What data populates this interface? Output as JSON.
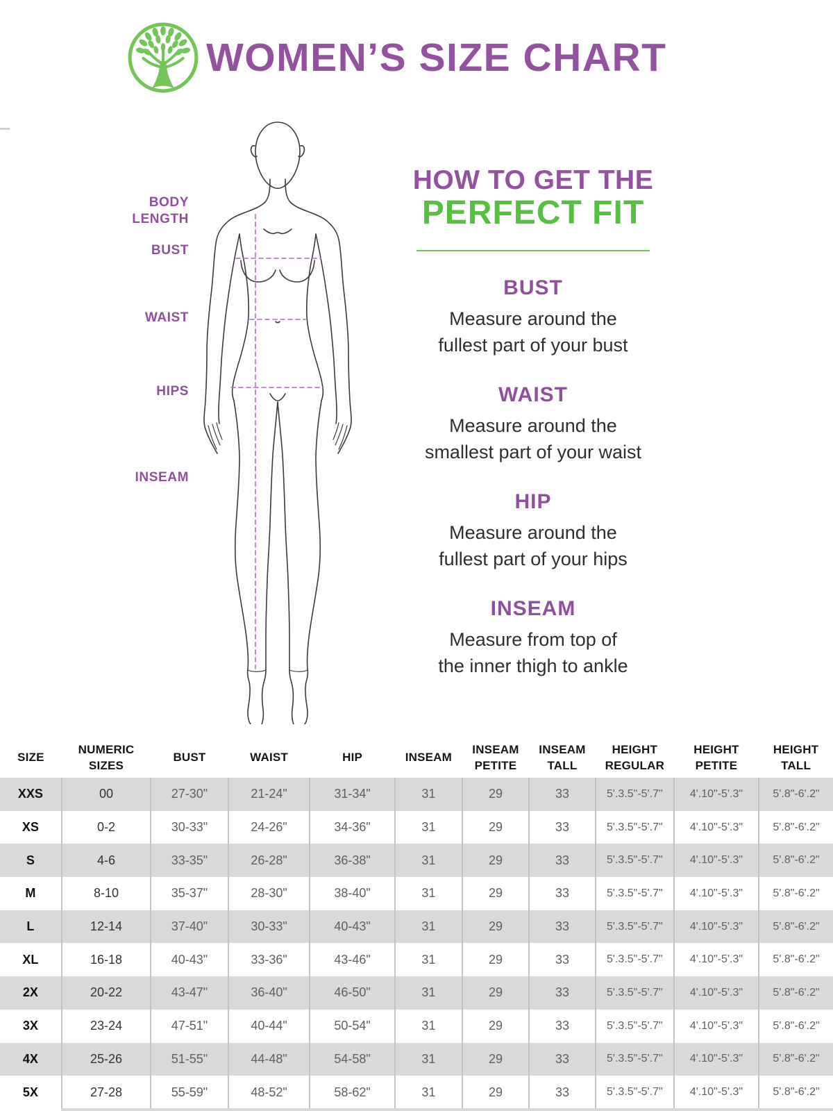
{
  "colors": {
    "purple": "#94519f",
    "green": "#56c13e",
    "logo_green": "#72c556",
    "dash_purple": "#b77fc9",
    "table_row_gray": "#d9d9d9"
  },
  "header": {
    "title": "WOMEN’S SIZE CHART",
    "logo_icon": "tree-in-circle"
  },
  "figure": {
    "labels": {
      "body_length": "BODY LENGTH",
      "bust": "BUST",
      "waist": "WAIST",
      "hips": "HIPS",
      "inseam": "INSEAM"
    }
  },
  "guide": {
    "title_line1": "HOW TO GET THE",
    "title_line2": "PERFECT FIT",
    "sections": [
      {
        "heading": "BUST",
        "lines": [
          "Measure around the",
          "fullest part of your bust"
        ]
      },
      {
        "heading": "WAIST",
        "lines": [
          "Measure around the",
          "smallest part of your waist"
        ]
      },
      {
        "heading": "HIP",
        "lines": [
          "Measure around the",
          "fullest part of your hips"
        ]
      },
      {
        "heading": "INSEAM",
        "lines": [
          "Measure from top of",
          "the inner thigh to ankle"
        ]
      }
    ]
  },
  "table": {
    "headers": [
      "SIZE",
      "NUMERIC SIZES",
      "BUST",
      "WAIST",
      "HIP",
      "INSEAM",
      "INSEAM PETITE",
      "INSEAM TALL",
      "HEIGHT REGULAR",
      "HEIGHT PETITE",
      "HEIGHT TALL"
    ],
    "rows": [
      [
        "XXS",
        "00",
        "27-30\"",
        "21-24\"",
        "31-34\"",
        "31",
        "29",
        "33",
        "5'.3.5\"-5'.7\"",
        "4'.10\"-5'.3\"",
        "5'.8\"-6'.2\""
      ],
      [
        "XS",
        "0-2",
        "30-33\"",
        "24-26\"",
        "34-36\"",
        "31",
        "29",
        "33",
        "5'.3.5\"-5'.7\"",
        "4'.10\"-5'.3\"",
        "5'.8\"-6'.2\""
      ],
      [
        "S",
        "4-6",
        "33-35\"",
        "26-28\"",
        "36-38\"",
        "31",
        "29",
        "33",
        "5'.3.5\"-5'.7\"",
        "4'.10\"-5'.3\"",
        "5'.8\"-6'.2\""
      ],
      [
        "M",
        "8-10",
        "35-37\"",
        "28-30\"",
        "38-40\"",
        "31",
        "29",
        "33",
        "5'.3.5\"-5'.7\"",
        "4'.10\"-5'.3\"",
        "5'.8\"-6'.2\""
      ],
      [
        "L",
        "12-14",
        "37-40\"",
        "30-33\"",
        "40-43\"",
        "31",
        "29",
        "33",
        "5'.3.5\"-5'.7\"",
        "4'.10\"-5'.3\"",
        "5'.8\"-6'.2\""
      ],
      [
        "XL",
        "16-18",
        "40-43\"",
        "33-36\"",
        "43-46\"",
        "31",
        "29",
        "33",
        "5'.3.5\"-5'.7\"",
        "4'.10\"-5'.3\"",
        "5'.8\"-6'.2\""
      ],
      [
        "2X",
        "20-22",
        "43-47\"",
        "36-40\"",
        "46-50\"",
        "31",
        "29",
        "33",
        "5'.3.5\"-5'.7\"",
        "4'.10\"-5'.3\"",
        "5'.8\"-6'.2\""
      ],
      [
        "3X",
        "23-24",
        "47-51\"",
        "40-44\"",
        "50-54\"",
        "31",
        "29",
        "33",
        "5'.3.5\"-5'.7\"",
        "4'.10\"-5'.3\"",
        "5'.8\"-6'.2\""
      ],
      [
        "4X",
        "25-26",
        "51-55\"",
        "44-48\"",
        "54-58\"",
        "31",
        "29",
        "33",
        "5'.3.5\"-5'.7\"",
        "4'.10\"-5'.3\"",
        "5'.8\"-6'.2\""
      ],
      [
        "5X",
        "27-28",
        "55-59\"",
        "48-52\"",
        "58-62\"",
        "31",
        "29",
        "33",
        "5'.3.5\"-5'.7\"",
        "4'.10\"-5'.3\"",
        "5'.8\"-6'.2\""
      ]
    ]
  }
}
